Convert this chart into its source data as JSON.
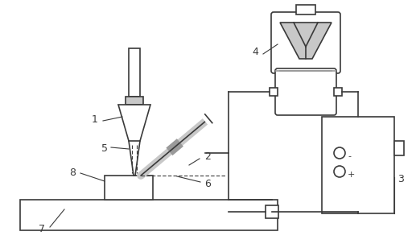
{
  "background_color": "#ffffff",
  "line_color": "#3a3a3a",
  "light_gray": "#c8c8c8",
  "mid_gray": "#9a9a9a",
  "lw": 1.2,
  "fig_w": 5.17,
  "fig_h": 3.03,
  "dpi": 100
}
